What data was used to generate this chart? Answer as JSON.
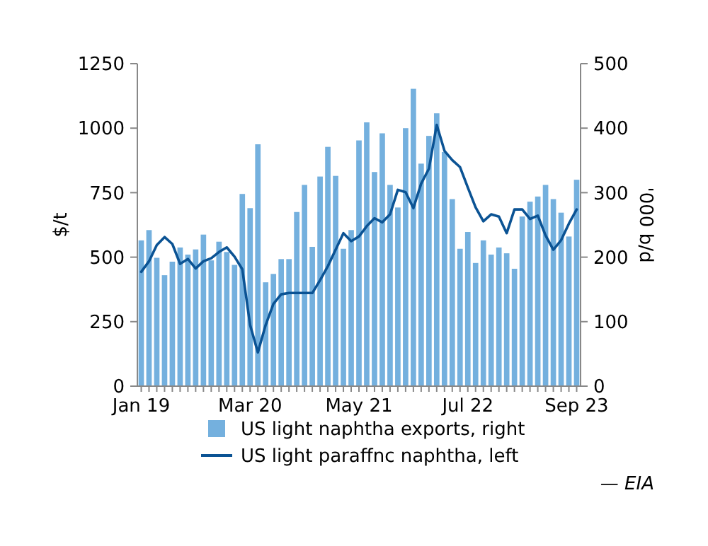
{
  "chart_data": {
    "type": "bar",
    "categories": [
      "Jan 19",
      null,
      null,
      null,
      null,
      null,
      null,
      null,
      null,
      null,
      null,
      null,
      null,
      null,
      "Mar 20",
      null,
      null,
      null,
      null,
      null,
      null,
      null,
      null,
      null,
      null,
      null,
      null,
      null,
      "May 21",
      null,
      null,
      null,
      null,
      null,
      null,
      null,
      null,
      null,
      null,
      null,
      null,
      null,
      "Jul 22",
      null,
      null,
      null,
      null,
      null,
      null,
      null,
      null,
      null,
      null,
      null,
      null,
      null,
      "Sep 23"
    ],
    "series": [
      {
        "name": "US light naphtha exports, right",
        "axis": "y2",
        "color": "#74b0de",
        "values": [
          226,
          242,
          199,
          172,
          193,
          215,
          204,
          212,
          235,
          195,
          224,
          208,
          188,
          298,
          276,
          375,
          161,
          174,
          197,
          197,
          270,
          312,
          216,
          325,
          371,
          326,
          213,
          242,
          381,
          409,
          332,
          392,
          312,
          277,
          400,
          461,
          345,
          388,
          423,
          363,
          290,
          213,
          239,
          191,
          226,
          204,
          215,
          206,
          182,
          263,
          286,
          294,
          312,
          290,
          269,
          232,
          320
        ]
      },
      {
        "name": "US light paraffnc naphtha, left",
        "type": "line",
        "color": "#0b5394",
        "values": [
          443,
          484,
          547,
          578,
          551,
          474,
          493,
          456,
          484,
          496,
          520,
          538,
          502,
          453,
          237,
          131,
          237,
          319,
          356,
          361,
          361,
          361,
          361,
          411,
          465,
          529,
          593,
          562,
          580,
          620,
          651,
          635,
          666,
          761,
          752,
          690,
          785,
          843,
          1013,
          912,
          876,
          849,
          770,
          693,
          639,
          666,
          657,
          593,
          685,
          685,
          648,
          661,
          584,
          529,
          566,
          630,
          685
        ]
      }
    ],
    "ylabel": "$/t",
    "y2label": "'000 b/d",
    "ylim": [
      0,
      1250
    ],
    "yticks": [
      0,
      250,
      500,
      750,
      1000,
      1250
    ],
    "y2lim": [
      0,
      500
    ],
    "y2ticks": [
      0,
      100,
      200,
      300,
      400,
      500
    ],
    "legend": "bottom",
    "grid": false,
    "annotations": [
      "— EIA"
    ]
  }
}
